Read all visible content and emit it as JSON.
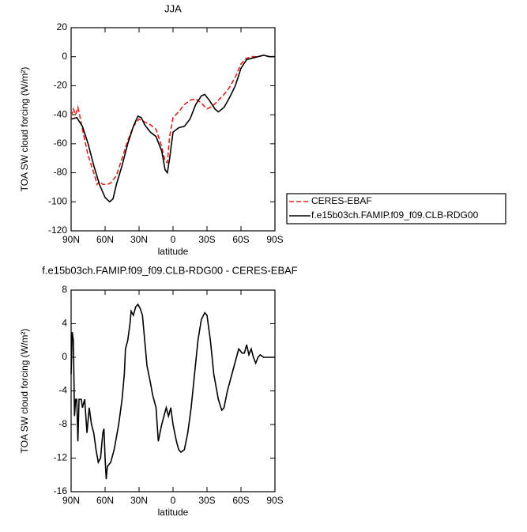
{
  "chart_data": [
    {
      "type": "line",
      "title": "JJA",
      "x_label": "latitude",
      "y_label": "TOA SW cloud forcing (W/m²)",
      "xlim": [
        90,
        -90
      ],
      "xticks": [
        {
          "value": 90,
          "label": "90N"
        },
        {
          "value": 60,
          "label": "60N"
        },
        {
          "value": 30,
          "label": "30N"
        },
        0,
        {
          "value": -30,
          "label": "30S"
        },
        {
          "value": -60,
          "label": "60S"
        },
        {
          "value": -90,
          "label": "90S"
        }
      ],
      "ylim": [
        -120,
        20
      ],
      "yticks": [
        20,
        0,
        -20,
        -40,
        -60,
        -80,
        -100,
        -120
      ],
      "legend": "right",
      "series": [
        {
          "name": "CERES-EBAF",
          "color": "#e0201b",
          "dash": true,
          "x": [
            90,
            88,
            86,
            84,
            82,
            80,
            75,
            70,
            67,
            65,
            62,
            58,
            55,
            50,
            45,
            40,
            35,
            30,
            25,
            20,
            15,
            10,
            7,
            5,
            3,
            0,
            -5,
            -10,
            -15,
            -20,
            -25,
            -30,
            -35,
            -40,
            -45,
            -50,
            -55,
            -60,
            -65,
            -70,
            -75,
            -80,
            -85,
            -90
          ],
          "values": [
            -41,
            -36,
            -40,
            -35,
            -42,
            -50,
            -68,
            -80,
            -88,
            -86,
            -88,
            -88,
            -87,
            -82,
            -70,
            -58,
            -48,
            -43,
            -45,
            -47,
            -50,
            -62,
            -72,
            -73,
            -55,
            -42,
            -38,
            -33,
            -30,
            -29,
            -32,
            -36,
            -34,
            -30,
            -26,
            -21,
            -14,
            -5,
            -1,
            0,
            0,
            1,
            0,
            0
          ]
        },
        {
          "name": "f.e15b03ch.FAMIP.f09_f09.CLB-RDG00",
          "color": "#000000",
          "dash": false,
          "x": [
            90,
            85,
            80,
            75,
            70,
            65,
            60,
            56,
            53,
            50,
            45,
            40,
            35,
            31,
            28,
            25,
            20,
            15,
            10,
            7,
            5,
            3,
            0,
            -5,
            -10,
            -15,
            -20,
            -25,
            -28,
            -32,
            -37,
            -40,
            -45,
            -50,
            -55,
            -60,
            -65,
            -70,
            -75,
            -80,
            -85,
            -90
          ],
          "values": [
            -43,
            -42,
            -48,
            -60,
            -75,
            -88,
            -97,
            -100,
            -98,
            -88,
            -75,
            -60,
            -48,
            -41,
            -42,
            -47,
            -52,
            -55,
            -65,
            -78,
            -80,
            -70,
            -52,
            -49,
            -48,
            -43,
            -33,
            -27,
            -26,
            -30,
            -36,
            -38,
            -35,
            -28,
            -20,
            -8,
            -2,
            -1,
            0,
            1,
            0,
            0
          ]
        }
      ]
    },
    {
      "type": "line",
      "title": "f.e15b03ch.FAMIP.f09_f09.CLB-RDG00 - CERES-EBAF",
      "x_label": "latitude",
      "y_label": "TOA SW cloud forcing (W/m²)",
      "xlim": [
        90,
        -90
      ],
      "xticks": [
        {
          "value": 90,
          "label": "90N"
        },
        {
          "value": 60,
          "label": "60N"
        },
        {
          "value": 30,
          "label": "30N"
        },
        0,
        {
          "value": -30,
          "label": "30S"
        },
        {
          "value": -60,
          "label": "60S"
        },
        {
          "value": -90,
          "label": "90S"
        }
      ],
      "ylim": [
        -16,
        8
      ],
      "yticks": [
        8,
        4,
        0,
        -4,
        -8,
        -12,
        -16
      ],
      "series": [
        {
          "color": "#000000",
          "dash": false,
          "x": [
            90,
            89,
            88,
            87,
            86,
            85,
            84,
            83,
            81,
            80,
            78,
            76,
            74,
            72,
            70,
            68,
            66,
            64,
            62,
            61,
            60,
            59,
            58,
            55,
            52,
            48,
            45,
            43,
            42,
            40,
            38,
            37,
            35,
            33,
            31,
            29,
            27,
            25,
            23,
            20,
            18,
            15,
            13,
            10,
            8,
            6,
            4,
            2,
            0,
            -3,
            -5,
            -7,
            -10,
            -13,
            -16,
            -19,
            -22,
            -25,
            -28,
            -30,
            -33,
            -36,
            -40,
            -43,
            -45,
            -48,
            -52,
            -56,
            -58,
            -61,
            -63,
            -65,
            -67,
            -69,
            -71,
            -73,
            -75,
            -77,
            -80,
            -85,
            -90
          ],
          "values": [
            -2,
            3,
            2,
            -7,
            -5,
            -5,
            -10,
            -5,
            -5,
            -6,
            -5,
            -9,
            -6,
            -8,
            -9,
            -11,
            -12.5,
            -12,
            -9,
            -8.5,
            -12,
            -14.5,
            -13,
            -12.5,
            -11,
            -8,
            -5,
            -2,
            1,
            2,
            4,
            5.5,
            5,
            6,
            6.3,
            5.8,
            5,
            2,
            -1,
            -3,
            -4.5,
            -6,
            -10,
            -8,
            -7,
            -6,
            -7,
            -6,
            -8,
            -10,
            -11,
            -11.3,
            -11,
            -9,
            -6,
            -2,
            2,
            4.5,
            5.3,
            5,
            2,
            -2,
            -5,
            -6.3,
            -6,
            -4,
            -2,
            0,
            1,
            0.5,
            0.5,
            1.5,
            0.3,
            1,
            0,
            -0.7,
            0,
            0.3,
            0,
            0,
            0
          ]
        }
      ]
    }
  ]
}
